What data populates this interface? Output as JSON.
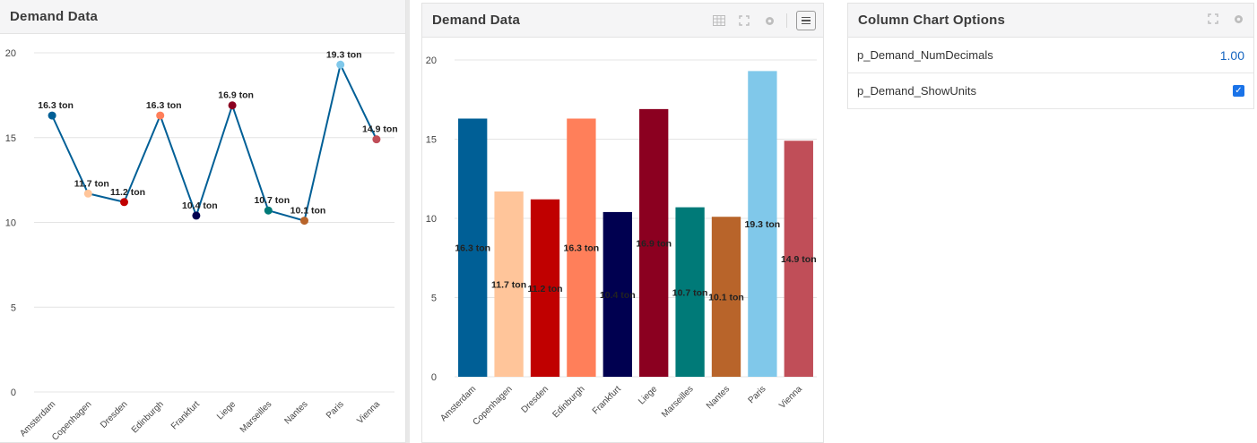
{
  "left_panel": {
    "title": "Demand Data"
  },
  "middle_panel": {
    "title": "Demand Data"
  },
  "right_panel": {
    "title": "Column Chart Options",
    "options": [
      {
        "name": "p_Demand_NumDecimals",
        "value": "1.00"
      },
      {
        "name": "p_Demand_ShowUnits",
        "checked": true
      }
    ]
  },
  "chart_data": [
    {
      "type": "line",
      "categories": [
        "Amsterdam",
        "Copenhagen",
        "Dresden",
        "Edinburgh",
        "Frankfurt",
        "Liege",
        "Marseilles",
        "Nantes",
        "Paris",
        "Vienna"
      ],
      "values": [
        16.3,
        11.7,
        11.2,
        16.3,
        10.4,
        16.9,
        10.7,
        10.1,
        19.3,
        14.9
      ],
      "labels": [
        "16.3 ton",
        "11.7 ton",
        "11.2 ton",
        "16.3 ton",
        "10.4 ton",
        "16.9 ton",
        "10.7 ton",
        "10.1 ton",
        "19.3 ton",
        "14.9 ton"
      ],
      "point_colors": [
        "#005f96",
        "#ffc59a",
        "#c00000",
        "#ff7f5a",
        "#000050",
        "#8b0020",
        "#007a78",
        "#b8642a",
        "#80c8ea",
        "#c04e58"
      ],
      "line_color": "#005f96",
      "ylim": [
        0,
        20
      ],
      "yticks": [
        "0",
        "5",
        "10",
        "15",
        "20"
      ],
      "grid": true
    },
    {
      "type": "bar",
      "categories": [
        "Amsterdam",
        "Copenhagen",
        "Dresden",
        "Edinburgh",
        "Frankfurt",
        "Liege",
        "Marseilles",
        "Nantes",
        "Paris",
        "Vienna"
      ],
      "values": [
        16.3,
        11.7,
        11.2,
        16.3,
        10.4,
        16.9,
        10.7,
        10.1,
        19.3,
        14.9
      ],
      "labels": [
        "16.3 ton",
        "11.7 ton",
        "11.2 ton",
        "16.3 ton",
        "10.4 ton",
        "16.9 ton",
        "10.7 ton",
        "10.1 ton",
        "19.3 ton",
        "14.9 ton"
      ],
      "bar_colors": [
        "#005f96",
        "#ffc59a",
        "#c00000",
        "#ff7f5a",
        "#000050",
        "#8b0020",
        "#007a78",
        "#b8642a",
        "#80c8ea",
        "#c04e58"
      ],
      "ylim": [
        0,
        20
      ],
      "yticks": [
        "0",
        "5",
        "10",
        "15",
        "20"
      ],
      "grid": true
    }
  ]
}
